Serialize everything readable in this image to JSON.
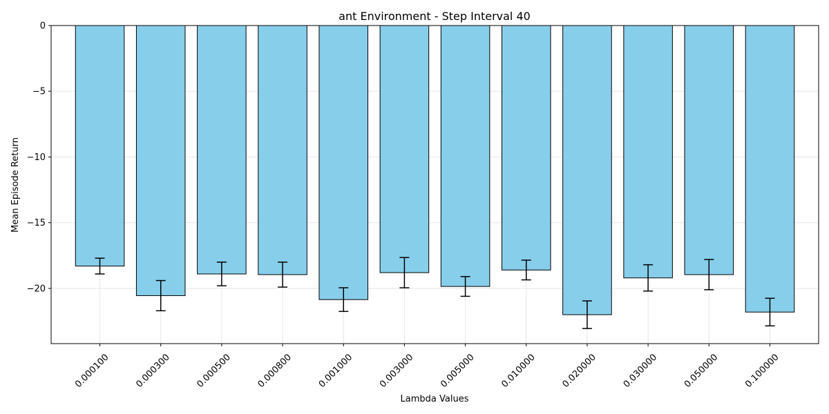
{
  "chart_data": {
    "type": "bar",
    "title": "ant Environment - Step Interval 40",
    "xlabel": "Lambda Values",
    "ylabel": "Mean Episode Return",
    "categories": [
      "0.000100",
      "0.000300",
      "0.000500",
      "0.000800",
      "0.001000",
      "0.003000",
      "0.005000",
      "0.010000",
      "0.020000",
      "0.030000",
      "0.050000",
      "0.100000"
    ],
    "values": [
      -18.3,
      -20.55,
      -18.9,
      -18.95,
      -20.85,
      -18.8,
      -19.85,
      -18.6,
      -22.0,
      -19.2,
      -18.95,
      -21.8
    ],
    "errors": [
      0.6,
      1.15,
      0.9,
      0.95,
      0.9,
      1.15,
      0.75,
      0.75,
      1.05,
      1.0,
      1.15,
      1.05
    ],
    "ylim": [
      -24.2,
      0
    ],
    "yticks": [
      0,
      -5,
      -10,
      -15,
      -20
    ],
    "ytick_labels": [
      "0",
      "−5",
      "−10",
      "−15",
      "−20"
    ],
    "grid": true,
    "bar_color": "#87CEEB",
    "edge_color": "#000000",
    "error_color": "#000000",
    "grid_color": "#e6e6e6"
  }
}
